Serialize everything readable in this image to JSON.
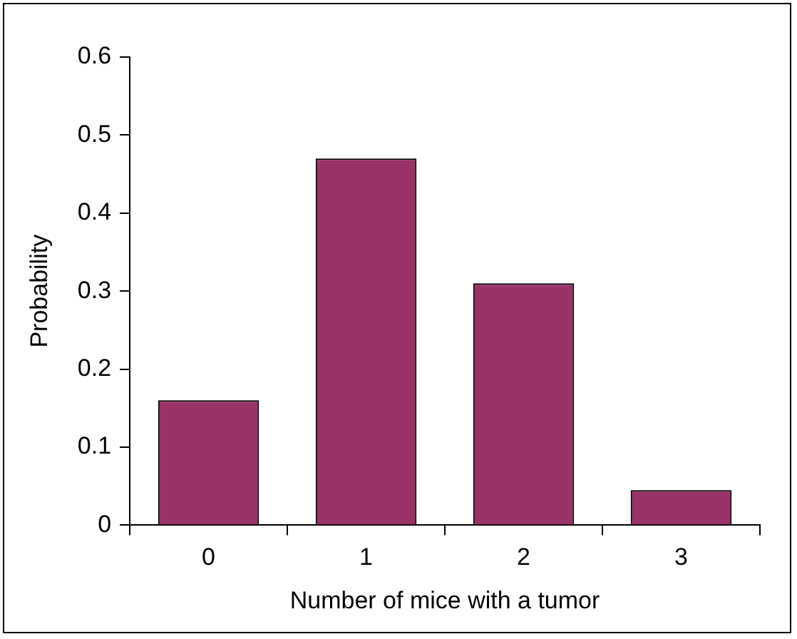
{
  "chart_data": {
    "type": "bar",
    "xlabel": "Number of mice with a tumor",
    "ylabel": "Probability",
    "categories": [
      "0",
      "1",
      "2",
      "3"
    ],
    "values": [
      0.16,
      0.47,
      0.31,
      0.045
    ],
    "color": "#993366",
    "ylim": [
      0,
      0.6
    ],
    "yticks": [
      0,
      0.1,
      0.2,
      0.3,
      0.4,
      0.5,
      0.6
    ],
    "grid": false,
    "legend": false
  }
}
